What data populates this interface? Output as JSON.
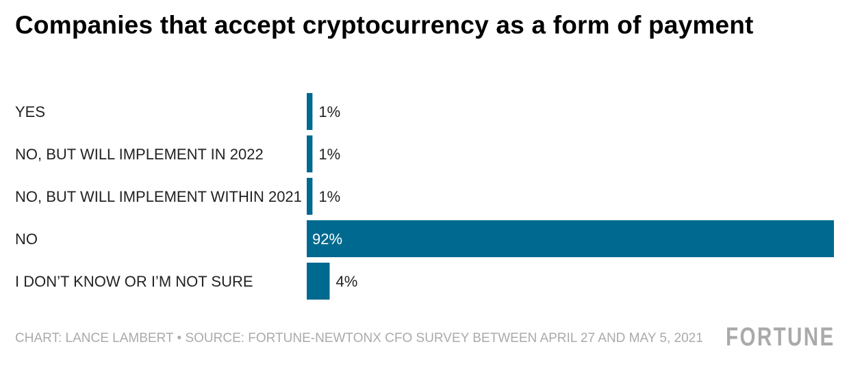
{
  "chart_data": {
    "type": "bar",
    "orientation": "horizontal",
    "title": "Companies that accept cryptocurrency as a form of payment",
    "categories": [
      "YES",
      "NO, BUT WILL IMPLEMENT IN 2022",
      "NO, BUT WILL IMPLEMENT WITHIN 2021",
      "NO",
      "I DON’T KNOW OR I’M NOT SURE"
    ],
    "values": [
      1,
      1,
      1,
      92,
      4
    ],
    "value_labels": [
      "1%",
      "1%",
      "1%",
      "92%",
      "4%"
    ],
    "unit": "%",
    "bar_color": "#00698f",
    "grid": false,
    "legend": "none"
  },
  "footer": {
    "credit": "CHART: LANCE LAMBERT • SOURCE: FORTUNE-NEWTONX CFO SURVEY BETWEEN APRIL 27 AND MAY 5, 2021",
    "logo": "FORTUNE"
  }
}
